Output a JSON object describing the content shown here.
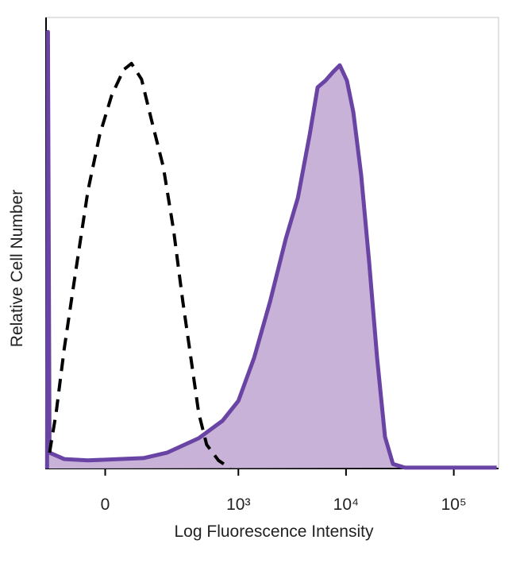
{
  "chart_data": {
    "type": "line",
    "xlabel": "Log Fluorescence Intensity",
    "ylabel": "Relative Cell Number",
    "xscale": "biexponential",
    "xlim": [
      -190,
      260000
    ],
    "ylim": [
      0,
      100
    ],
    "xticks": [
      0,
      {
        "value": 1000,
        "label": "10³"
      },
      {
        "value": 10000,
        "label": "10⁴"
      },
      {
        "value": 100000,
        "label": "10⁵"
      }
    ],
    "series": [
      {
        "color": "#000000",
        "linestyle": "dashed",
        "x": [
          -174,
          -146,
          -116,
          -78,
          -44,
          -14,
          16,
          47,
          69,
          100,
          134,
          185,
          238,
          295,
          354,
          422,
          503,
          651,
          843
        ],
        "values": [
          3.5,
          12.3,
          26.4,
          44,
          61.6,
          73.9,
          82.7,
          88.4,
          89.8,
          86.3,
          77.5,
          66.9,
          52.8,
          37,
          24.6,
          12.3,
          5.3,
          1.8,
          0
        ]
      },
      {
        "color": "#6a44a4",
        "fill": "#c9b2d8",
        "linestyle": "solid",
        "x": [
          -185,
          -181,
          -174,
          -116,
          -44,
          36,
          106,
          203,
          422,
          711,
          1000,
          1405,
          1972,
          2766,
          3571,
          4600,
          5450,
          6450,
          7640,
          8750,
          10200,
          11700,
          13840,
          16400,
          19420,
          23000,
          27250,
          35100,
          250000
        ],
        "values": [
          0,
          96.8,
          3.5,
          2.1,
          1.8,
          2.1,
          2.3,
          3.5,
          6.7,
          10.6,
          15,
          24.6,
          37,
          51,
          60,
          74,
          84.5,
          86,
          88,
          89.4,
          86,
          79,
          65,
          45.8,
          24.6,
          7,
          1,
          0.2,
          0.2
        ]
      }
    ]
  }
}
